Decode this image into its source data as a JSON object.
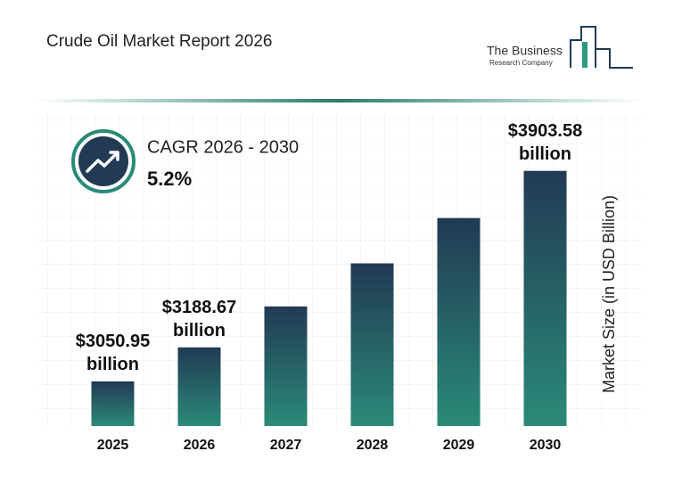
{
  "header": {
    "title": "Crude Oil Market Report 2026"
  },
  "logo": {
    "line1": "The Business",
    "line2": "Research Company"
  },
  "chart_data": {
    "type": "bar",
    "cagr_label": "CAGR 2026 - 2030",
    "cagr_value": "5.2%",
    "y_label": "Market Size (in USD Billion)",
    "categories": [
      "2025",
      "2026",
      "2027",
      "2028",
      "2029",
      "2030"
    ],
    "values": [
      3050.95,
      3188.67,
      3354.5,
      3529,
      3712.6,
      3903.58
    ],
    "value_labels": [
      "$3050.95 billion",
      "$3188.67 billion",
      null,
      null,
      null,
      "$3903.58 billion"
    ],
    "color_top": "#223a54",
    "color_bottom": "#2a8a78",
    "ylim": [
      2870,
      4000
    ]
  }
}
